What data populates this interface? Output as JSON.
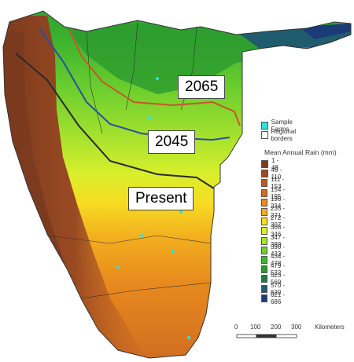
{
  "labels": {
    "y2065": "2065",
    "y2045": "2045",
    "present": "Present"
  },
  "legend": {
    "sample_farms": "Sample Farms",
    "regional_borders": "Regional borders",
    "title": "Mean Annual Rain (mm)",
    "sample_farms_color": "#33e0e0",
    "classes": [
      {
        "label": "1 - 48",
        "color": "#7a3a1e"
      },
      {
        "label": "49 - 110",
        "color": "#9a4a22"
      },
      {
        "label": "111 - 153",
        "color": "#b85a24"
      },
      {
        "label": "154 - 195",
        "color": "#d06d22"
      },
      {
        "label": "196 - 234",
        "color": "#e88a1e"
      },
      {
        "label": "235 - 271",
        "color": "#f2ad1e"
      },
      {
        "label": "272 - 307",
        "color": "#f6dc22"
      },
      {
        "label": "308 - 346",
        "color": "#d8ef2c"
      },
      {
        "label": "347 - 389",
        "color": "#a6e22e"
      },
      {
        "label": "390 - 433",
        "color": "#6ecf2e"
      },
      {
        "label": "434 - 478",
        "color": "#3fb52e"
      },
      {
        "label": "479 - 522",
        "color": "#2a9a2e"
      },
      {
        "label": "523 - 569",
        "color": "#1d7d3e"
      },
      {
        "label": "570 - 620",
        "color": "#1e5c6e"
      },
      {
        "label": "621 - 686",
        "color": "#1a3a78"
      }
    ]
  },
  "scale": {
    "ticks": [
      "0",
      "100",
      "200",
      "300"
    ],
    "unit": "Kilometers"
  },
  "line_colors": {
    "present": "#2a2a2a",
    "y2045": "#2a4fa0",
    "y2065": "#c8552a"
  }
}
